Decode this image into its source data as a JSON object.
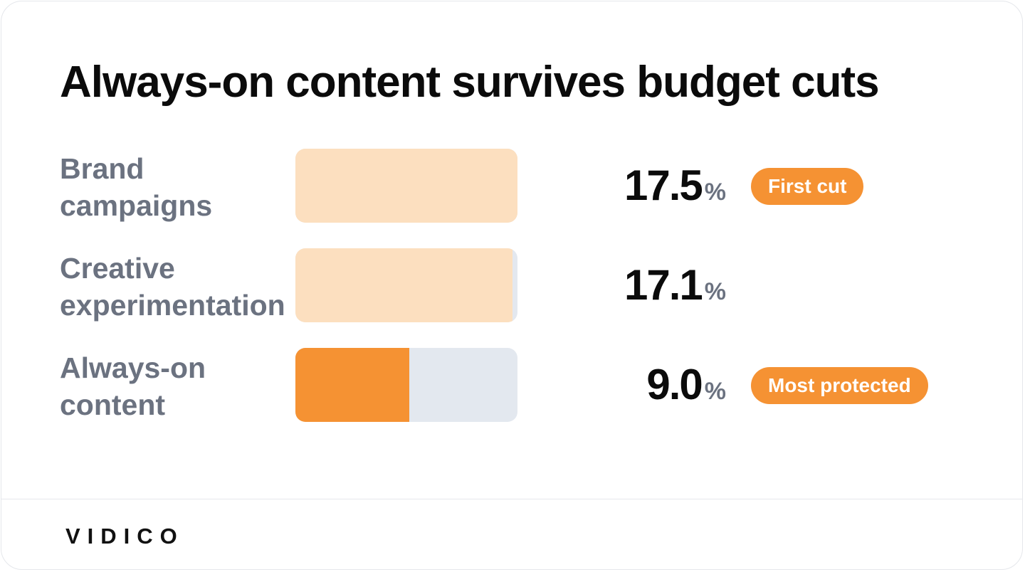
{
  "title": "Always-on content survives budget cuts",
  "brand": "VIDICO",
  "percent_symbol": "%",
  "colors": {
    "accent": "#f59233",
    "accent_light": "#fcdfbf",
    "track": "#e3e8ef",
    "label": "#6b7280"
  },
  "chart_data": {
    "type": "bar",
    "orientation": "horizontal",
    "unit": "%",
    "xlim": [
      0,
      17.5
    ],
    "categories": [
      "Brand campaigns",
      "Creative experimentation",
      "Always-on content"
    ],
    "values": [
      17.5,
      17.1,
      9.0
    ],
    "value_labels": [
      "17.5",
      "17.1",
      "9.0"
    ],
    "label_lines": [
      [
        "Brand",
        "campaigns"
      ],
      [
        "Creative",
        "experimentation"
      ],
      [
        "Always-on",
        "content"
      ]
    ],
    "badges": [
      "First cut",
      "",
      "Most protected"
    ],
    "highlight": [
      false,
      false,
      true
    ]
  }
}
